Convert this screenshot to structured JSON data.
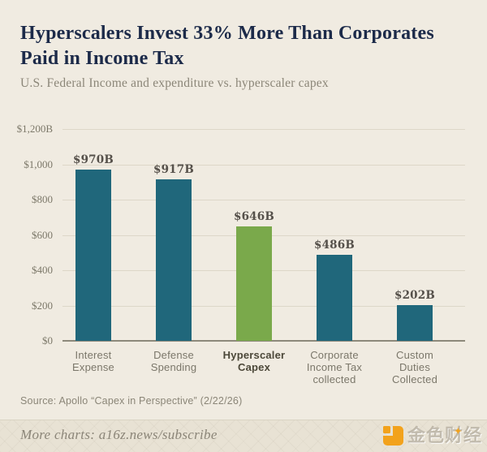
{
  "header": {
    "title": "Hyperscalers Invest 33% More Than Corporates Paid in Income Tax",
    "subtitle": "U.S. Federal Income and expenditure vs. hyperscaler capex"
  },
  "chart_data": {
    "type": "bar",
    "title": "Hyperscalers Invest 33% More Than Corporates Paid in Income Tax",
    "subtitle": "U.S. Federal Income and expenditure vs. hyperscaler capex",
    "categories": [
      "Interest Expense",
      "Defense Spending",
      "Hyperscaler Capex",
      "Corporate Income Tax collected",
      "Custom Duties Collected"
    ],
    "category_lines": [
      "Interest\nExpense",
      "Defense\nSpending",
      "Hyperscaler\nCapex",
      "Corporate\nIncome Tax\ncollected",
      "Custom\nDuties\nCollected"
    ],
    "values": [
      970,
      917,
      646,
      486,
      202
    ],
    "bar_labels": [
      "$970B",
      "$917B",
      "$646B",
      "$486B",
      "$202B"
    ],
    "highlight_index": 2,
    "bar_color_default": "#20677B",
    "bar_color_highlight": "#7AA94B",
    "xlabel": "",
    "ylabel": "",
    "ylim": [
      0,
      1200
    ],
    "grid": true,
    "legend": "none",
    "yticks": [
      {
        "value": 0,
        "label": "$0"
      },
      {
        "value": 200,
        "label": "$200"
      },
      {
        "value": 400,
        "label": "$400"
      },
      {
        "value": 600,
        "label": "$600"
      },
      {
        "value": 800,
        "label": "$800"
      },
      {
        "value": 1000,
        "label": "$1,000"
      },
      {
        "value": 1200,
        "label": "$1,200B"
      }
    ]
  },
  "source": {
    "text": "Source: Apollo “Capex in Perspective” (2/22/26)"
  },
  "footer": {
    "more_charts": "More charts: a16z.news/subscribe",
    "watermark": "金色财经",
    "sparkle": "✦",
    "logo_color": "#F2A21C"
  }
}
